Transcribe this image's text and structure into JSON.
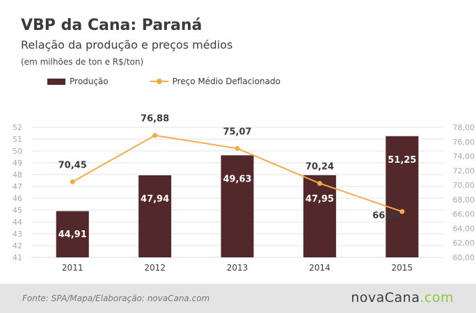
{
  "header": {
    "title": "VBP da Cana: Paraná",
    "subtitle": "Relação da produção e preços médios",
    "units": "(em milhões de ton e R$/ton)"
  },
  "colors": {
    "bar": "#53282b",
    "line": "#f2ab4b",
    "grid": "#e6e6e6",
    "axis_text": "#a8a8a8"
  },
  "footer": {
    "source": "Fonte: SPA/Mapa/Elaboração: novaCana.com",
    "brand_main": "novaCana",
    "brand_suffix": ".com"
  },
  "chart_data": {
    "type": "bar",
    "categories": [
      "2011",
      "2012",
      "2013",
      "2014",
      "2015"
    ],
    "series": [
      {
        "name": "Produção",
        "type": "bar",
        "axis": "left",
        "values": [
          44.91,
          47.94,
          49.63,
          47.95,
          51.25
        ],
        "labels": [
          "44,91",
          "47,94",
          "49,63",
          "47,95",
          "51,25"
        ]
      },
      {
        "name": "Preço Médio Deflacionado",
        "type": "line",
        "axis": "right",
        "values": [
          70.45,
          76.88,
          75.07,
          70.24,
          66.34
        ],
        "labels": [
          "70,45",
          "76,88",
          "75,07",
          "70,24",
          "66,34"
        ]
      }
    ],
    "y_left": {
      "range": [
        41,
        52
      ],
      "ticks": [
        "41",
        "42",
        "43",
        "44",
        "45",
        "46",
        "47",
        "48",
        "49",
        "50",
        "51",
        "52"
      ]
    },
    "y_right": {
      "range": [
        60,
        78
      ],
      "ticks": [
        "60,00",
        "62,00",
        "64,00",
        "66,00",
        "68,00",
        "70,00",
        "72,00",
        "74,00",
        "76,00",
        "78,00"
      ]
    },
    "grid": true,
    "legend": "top-left"
  }
}
